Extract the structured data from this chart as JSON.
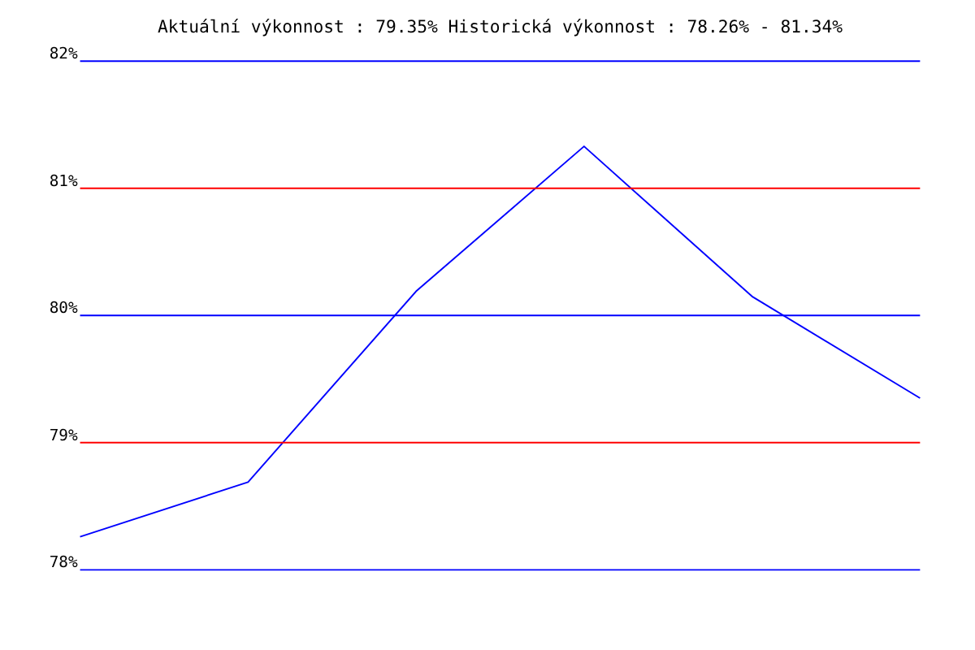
{
  "chart_data": {
    "type": "line",
    "title": "Aktuální výkonnost : 79.35%  Historická výkonnost : 78.26% - 81.34%",
    "categories": [
      null,
      null,
      null,
      null,
      null,
      null
    ],
    "series": [
      {
        "color": "#0000ff",
        "values": [
          78.26,
          78.69,
          80.19,
          81.33,
          80.15,
          79.35
        ]
      }
    ],
    "ylim": [
      78,
      82
    ],
    "yticks": [
      {
        "value": 78,
        "label": "78%"
      },
      {
        "value": 79,
        "label": "79%"
      },
      {
        "value": 80,
        "label": "80%"
      },
      {
        "value": 81,
        "label": "81%"
      },
      {
        "value": 82,
        "label": "82%"
      }
    ],
    "tick_labels": "y",
    "marker": "none",
    "line_style": "solid",
    "ref_lines": [
      {
        "axis": "y",
        "value": 78,
        "color": "#0000ff"
      },
      {
        "axis": "y",
        "value": 79,
        "color": "#ff0000"
      },
      {
        "axis": "y",
        "value": 80,
        "color": "#0000ff"
      },
      {
        "axis": "y",
        "value": 81,
        "color": "#ff0000"
      },
      {
        "axis": "y",
        "value": 82,
        "color": "#0000ff"
      }
    ]
  }
}
